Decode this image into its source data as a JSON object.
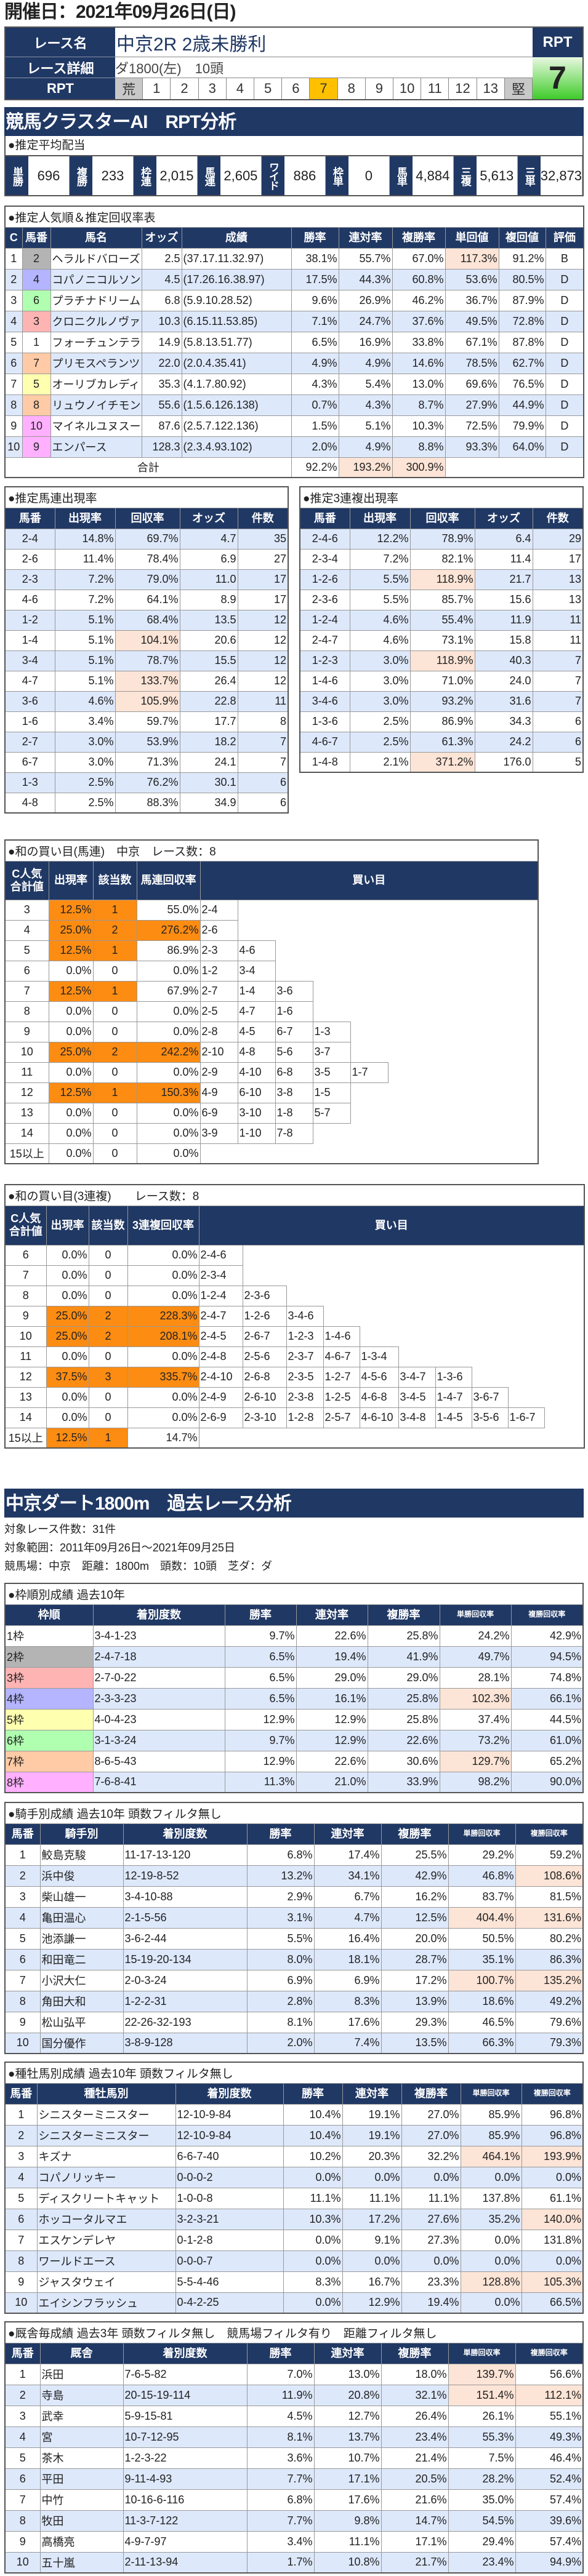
{
  "header": {
    "date": "開催日：2021年09月26日(日)",
    "race_name_label": "レース名",
    "race_name": "中京2R 2歳未勝利",
    "detail_label": "レース詳細",
    "detail": "ダ1800(左)　10頭",
    "rpt_label": "RPT",
    "rpt_scale": [
      "荒",
      "1",
      "2",
      "3",
      "4",
      "5",
      "6",
      "7",
      "8",
      "9",
      "10",
      "11",
      "12",
      "13",
      "堅"
    ],
    "rpt_selected": "7",
    "rpt_box_label": "RPT",
    "rpt_value": "7",
    "rpt_color": "#ffc000"
  },
  "colors": {
    "navy": "#203864",
    "stripe": "#dde8fb",
    "highlight": "#fce4d6",
    "orange": "#fd8c13",
    "frames": {
      "1": "#ffffff",
      "2": "#b4b4b4",
      "3": "#ffb4b4",
      "4": "#b4b4ff",
      "5": "#ffffb0",
      "6": "#b0ffb0",
      "7": "#ffcaa6",
      "8": "#ffb0ff"
    }
  },
  "ai": {
    "title": "競馬クラスターAI　RPT分析",
    "payout_title": "●推定平均配当",
    "payouts": [
      {
        "label": "単勝",
        "value": "696"
      },
      {
        "label": "複勝",
        "value": "233"
      },
      {
        "label": "枠連",
        "value": "2,015"
      },
      {
        "label": "馬連",
        "value": "2,605"
      },
      {
        "label": "ワイド",
        "value": "886"
      },
      {
        "label": "枠単",
        "value": "0"
      },
      {
        "label": "馬単",
        "value": "4,884"
      },
      {
        "label": "三複",
        "value": "5,613"
      },
      {
        "label": "三単",
        "value": "32,873"
      }
    ]
  },
  "popularity": {
    "title": "●推定人気順＆推定回収率表",
    "headers": [
      "C",
      "馬番",
      "馬名",
      "オッズ",
      "成績",
      "勝率",
      "連対率",
      "複勝率",
      "単回値",
      "複回値",
      "評価"
    ],
    "rows": [
      [
        "1",
        "2",
        "ヘラルドバローズ",
        "2.5",
        "(37.17.11.32.97)",
        "38.1%",
        "55.7%",
        "67.0%",
        "117.3%",
        "91.2%",
        "B"
      ],
      [
        "2",
        "4",
        "コパノニコルソン",
        "4.5",
        "(17.26.16.38.97)",
        "17.5%",
        "44.3%",
        "60.8%",
        "53.6%",
        "80.5%",
        "D"
      ],
      [
        "3",
        "6",
        "プラチナドリーム",
        "6.8",
        "(5.9.10.28.52)",
        "9.6%",
        "26.9%",
        "46.2%",
        "36.7%",
        "87.9%",
        "D"
      ],
      [
        "4",
        "3",
        "クロニクルノヴァ",
        "10.3",
        "(6.15.11.53.85)",
        "7.1%",
        "24.7%",
        "37.6%",
        "49.5%",
        "72.8%",
        "D"
      ],
      [
        "5",
        "1",
        "フォーチュンテラー",
        "14.9",
        "(5.8.13.51.77)",
        "6.5%",
        "16.9%",
        "33.8%",
        "67.1%",
        "87.8%",
        "D"
      ],
      [
        "6",
        "7",
        "プリモスペランツァ",
        "22.0",
        "(2.0.4.35.41)",
        "4.9%",
        "4.9%",
        "14.6%",
        "78.5%",
        "62.7%",
        "D"
      ],
      [
        "7",
        "5",
        "オーリブカレディ",
        "35.3",
        "(4.1.7.80.92)",
        "4.3%",
        "5.4%",
        "13.0%",
        "69.6%",
        "76.5%",
        "D"
      ],
      [
        "8",
        "8",
        "リュウノイチモンジ",
        "55.6",
        "(1.5.6.126.138)",
        "0.7%",
        "4.3%",
        "8.7%",
        "27.9%",
        "44.9%",
        "D"
      ],
      [
        "9",
        "10",
        "マイネルユヌスール",
        "87.6",
        "(2.5.7.122.136)",
        "1.5%",
        "5.1%",
        "10.3%",
        "72.5%",
        "79.9%",
        "D"
      ],
      [
        "10",
        "9",
        "エンパース",
        "128.3",
        "(2.3.4.93.102)",
        "2.0%",
        "4.9%",
        "8.8%",
        "93.3%",
        "64.0%",
        "D"
      ]
    ],
    "frames": [
      "2",
      "4",
      "6",
      "3",
      "1",
      "7",
      "5",
      "7",
      "8",
      "8"
    ],
    "highlights": [
      [
        0,
        8
      ]
    ],
    "total": {
      "label": "合計",
      "win": "92.2%",
      "ren": "193.2%",
      "fuku": "300.9%"
    }
  },
  "umaren": {
    "title": "●推定馬連出現率",
    "headers": [
      "馬番",
      "出現率",
      "回収率",
      "オッズ",
      "件数"
    ],
    "rows": [
      [
        "2-4",
        "14.8%",
        "69.7%",
        "4.7",
        "35"
      ],
      [
        "2-6",
        "11.4%",
        "78.4%",
        "6.9",
        "27"
      ],
      [
        "2-3",
        "7.2%",
        "79.0%",
        "11.0",
        "17"
      ],
      [
        "4-6",
        "7.2%",
        "64.1%",
        "8.9",
        "17"
      ],
      [
        "1-2",
        "5.1%",
        "68.4%",
        "13.5",
        "12"
      ],
      [
        "1-4",
        "5.1%",
        "104.1%",
        "20.6",
        "12"
      ],
      [
        "3-4",
        "5.1%",
        "78.7%",
        "15.5",
        "12"
      ],
      [
        "4-7",
        "5.1%",
        "133.7%",
        "26.4",
        "12"
      ],
      [
        "3-6",
        "4.6%",
        "105.9%",
        "22.8",
        "11"
      ],
      [
        "1-6",
        "3.4%",
        "59.7%",
        "17.7",
        "8"
      ],
      [
        "2-7",
        "3.0%",
        "53.9%",
        "18.2",
        "7"
      ],
      [
        "6-7",
        "3.0%",
        "71.3%",
        "24.1",
        "7"
      ],
      [
        "1-3",
        "2.5%",
        "76.2%",
        "30.1",
        "6"
      ],
      [
        "4-8",
        "2.5%",
        "88.3%",
        "34.9",
        "6"
      ]
    ],
    "highlights": [
      [
        5,
        2
      ],
      [
        7,
        2
      ],
      [
        8,
        2
      ]
    ]
  },
  "sanrenpuku": {
    "title": "●推定3連複出現率",
    "headers": [
      "馬番",
      "出現率",
      "回収率",
      "オッズ",
      "件数"
    ],
    "rows": [
      [
        "2-4-6",
        "12.2%",
        "78.9%",
        "6.4",
        "29"
      ],
      [
        "2-3-4",
        "7.2%",
        "82.1%",
        "11.4",
        "17"
      ],
      [
        "1-2-6",
        "5.5%",
        "118.9%",
        "21.7",
        "13"
      ],
      [
        "2-3-6",
        "5.5%",
        "85.7%",
        "15.6",
        "13"
      ],
      [
        "1-2-4",
        "4.6%",
        "55.4%",
        "11.9",
        "11"
      ],
      [
        "2-4-7",
        "4.6%",
        "73.1%",
        "15.8",
        "11"
      ],
      [
        "1-2-3",
        "3.0%",
        "118.9%",
        "40.3",
        "7"
      ],
      [
        "1-4-6",
        "3.0%",
        "71.0%",
        "24.0",
        "7"
      ],
      [
        "3-4-6",
        "3.0%",
        "93.2%",
        "31.6",
        "7"
      ],
      [
        "1-3-6",
        "2.5%",
        "86.9%",
        "34.3",
        "6"
      ],
      [
        "4-6-7",
        "2.5%",
        "61.3%",
        "24.2",
        "6"
      ],
      [
        "1-4-8",
        "2.1%",
        "371.2%",
        "176.0",
        "5"
      ]
    ],
    "highlights": [
      [
        2,
        2
      ],
      [
        6,
        2
      ],
      [
        11,
        2
      ]
    ]
  },
  "buy_umaren": {
    "title": "●和の買い目(馬連)　中京　レース数：8",
    "headers": [
      "C人気\n合計値",
      "出現率",
      "該当数",
      "馬連回収率",
      "買い目"
    ],
    "rows": [
      [
        "3",
        "12.5%",
        "1",
        "55.0%",
        [
          "2-4"
        ]
      ],
      [
        "4",
        "25.0%",
        "2",
        "276.2%",
        [
          "2-6"
        ]
      ],
      [
        "5",
        "12.5%",
        "1",
        "86.9%",
        [
          "2-3",
          "4-6"
        ]
      ],
      [
        "6",
        "0.0%",
        "0",
        "0.0%",
        [
          "1-2",
          "3-4"
        ]
      ],
      [
        "7",
        "12.5%",
        "1",
        "67.9%",
        [
          "2-7",
          "1-4",
          "3-6"
        ]
      ],
      [
        "8",
        "0.0%",
        "0",
        "0.0%",
        [
          "2-5",
          "4-7",
          "1-6"
        ]
      ],
      [
        "9",
        "0.0%",
        "0",
        "0.0%",
        [
          "2-8",
          "4-5",
          "6-7",
          "1-3"
        ]
      ],
      [
        "10",
        "25.0%",
        "2",
        "242.2%",
        [
          "2-10",
          "4-8",
          "5-6",
          "3-7"
        ]
      ],
      [
        "11",
        "0.0%",
        "0",
        "0.0%",
        [
          "2-9",
          "4-10",
          "6-8",
          "3-5",
          "1-7"
        ]
      ],
      [
        "12",
        "12.5%",
        "1",
        "150.3%",
        [
          "4-9",
          "6-10",
          "3-8",
          "1-5"
        ]
      ],
      [
        "13",
        "0.0%",
        "0",
        "0.0%",
        [
          "6-9",
          "3-10",
          "1-8",
          "5-7"
        ]
      ],
      [
        "14",
        "0.0%",
        "0",
        "0.0%",
        [
          "3-9",
          "1-10",
          "7-8"
        ]
      ],
      [
        "15以上",
        "0.0%",
        "0",
        "0.0%",
        []
      ]
    ],
    "orange": [
      [
        0,
        1
      ],
      [
        0,
        2
      ],
      [
        1,
        1
      ],
      [
        1,
        2
      ],
      [
        1,
        3
      ],
      [
        2,
        1
      ],
      [
        2,
        2
      ],
      [
        4,
        1
      ],
      [
        4,
        2
      ],
      [
        7,
        1
      ],
      [
        7,
        2
      ],
      [
        7,
        3
      ],
      [
        9,
        1
      ],
      [
        9,
        2
      ],
      [
        9,
        3
      ]
    ]
  },
  "buy_sanrenpuku": {
    "title": "●和の買い目(3連複)　　レース数：8",
    "headers": [
      "C人気\n合計値",
      "出現率",
      "該当数",
      "3連複回収率",
      "買い目"
    ],
    "rows": [
      [
        "6",
        "0.0%",
        "0",
        "0.0%",
        [
          "2-4-6"
        ]
      ],
      [
        "7",
        "0.0%",
        "0",
        "0.0%",
        [
          "2-3-4"
        ]
      ],
      [
        "8",
        "0.0%",
        "0",
        "0.0%",
        [
          "1-2-4",
          "2-3-6"
        ]
      ],
      [
        "9",
        "25.0%",
        "2",
        "228.3%",
        [
          "2-4-7",
          "1-2-6",
          "3-4-6"
        ]
      ],
      [
        "10",
        "25.0%",
        "2",
        "208.1%",
        [
          "2-4-5",
          "2-6-7",
          "1-2-3",
          "1-4-6"
        ]
      ],
      [
        "11",
        "0.0%",
        "0",
        "0.0%",
        [
          "2-4-8",
          "2-5-6",
          "2-3-7",
          "4-6-7",
          "1-3-4"
        ]
      ],
      [
        "12",
        "37.5%",
        "3",
        "335.7%",
        [
          "2-4-10",
          "2-6-8",
          "2-3-5",
          "1-2-7",
          "4-5-6",
          "3-4-7",
          "1-3-6"
        ]
      ],
      [
        "13",
        "0.0%",
        "0",
        "0.0%",
        [
          "2-4-9",
          "2-6-10",
          "2-3-8",
          "1-2-5",
          "4-6-8",
          "3-4-5",
          "1-4-7",
          "3-6-7"
        ]
      ],
      [
        "14",
        "0.0%",
        "0",
        "0.0%",
        [
          "2-6-9",
          "2-3-10",
          "1-2-8",
          "2-5-7",
          "4-6-10",
          "3-4-8",
          "1-4-5",
          "3-5-6",
          "1-6-7"
        ]
      ],
      [
        "15以上",
        "12.5%",
        "1",
        "14.7%",
        []
      ]
    ],
    "orange": [
      [
        3,
        1
      ],
      [
        3,
        2
      ],
      [
        3,
        3
      ],
      [
        4,
        1
      ],
      [
        4,
        2
      ],
      [
        4,
        3
      ],
      [
        6,
        1
      ],
      [
        6,
        2
      ],
      [
        6,
        3
      ],
      [
        9,
        1
      ],
      [
        9,
        2
      ]
    ]
  },
  "past": {
    "title": "中京ダート1800m　過去レース分析",
    "count": "対象レース件数：31件",
    "range": "対象範囲：2011年09月26日～2021年09月25日",
    "conditions": "競馬場：中京　距離：1800m　頭数：10頭　芝ダ：ダ"
  },
  "waku": {
    "title": "●枠順別成績 過去10年",
    "headers": [
      "枠順",
      "着別度数",
      "勝率",
      "連対率",
      "複勝率",
      "単勝回収率",
      "複勝回収率"
    ],
    "rows": [
      [
        "1枠",
        "3-4-1-23",
        "9.7%",
        "22.6%",
        "25.8%",
        "24.2%",
        "42.9%"
      ],
      [
        "2枠",
        "2-4-7-18",
        "6.5%",
        "19.4%",
        "41.9%",
        "49.7%",
        "94.5%"
      ],
      [
        "3枠",
        "2-7-0-22",
        "6.5%",
        "29.0%",
        "29.0%",
        "28.1%",
        "74.8%"
      ],
      [
        "4枠",
        "2-3-3-23",
        "6.5%",
        "16.1%",
        "25.8%",
        "102.3%",
        "66.1%"
      ],
      [
        "5枠",
        "4-0-4-23",
        "12.9%",
        "12.9%",
        "25.8%",
        "37.4%",
        "44.5%"
      ],
      [
        "6枠",
        "3-1-3-24",
        "9.7%",
        "12.9%",
        "22.6%",
        "73.2%",
        "61.0%"
      ],
      [
        "7枠",
        "8-6-5-43",
        "12.9%",
        "22.6%",
        "30.6%",
        "129.7%",
        "65.2%"
      ],
      [
        "8枠",
        "7-6-8-41",
        "11.3%",
        "21.0%",
        "33.9%",
        "98.2%",
        "90.0%"
      ]
    ],
    "frames": [
      "1",
      "2",
      "3",
      "4",
      "5",
      "6",
      "7",
      "8"
    ],
    "highlights": [
      [
        3,
        5
      ],
      [
        6,
        5
      ]
    ]
  },
  "jockey": {
    "title": "●騎手別成績 過去10年 頭数フィルタ無し",
    "headers": [
      "馬番",
      "騎手別",
      "着別度数",
      "勝率",
      "連対率",
      "複勝率",
      "単勝回収率",
      "複勝回収率"
    ],
    "rows": [
      [
        "1",
        "鮫島克駿",
        "11-17-13-120",
        "6.8%",
        "17.4%",
        "25.5%",
        "29.2%",
        "59.2%"
      ],
      [
        "2",
        "浜中俊",
        "12-19-8-52",
        "13.2%",
        "34.1%",
        "42.9%",
        "46.8%",
        "108.6%"
      ],
      [
        "3",
        "柴山雄一",
        "3-4-10-88",
        "2.9%",
        "6.7%",
        "16.2%",
        "83.7%",
        "81.5%"
      ],
      [
        "4",
        "亀田温心",
        "2-1-5-56",
        "3.1%",
        "4.7%",
        "12.5%",
        "404.4%",
        "131.6%"
      ],
      [
        "5",
        "池添謙一",
        "3-6-2-44",
        "5.5%",
        "16.4%",
        "20.0%",
        "50.5%",
        "80.2%"
      ],
      [
        "6",
        "和田竜二",
        "15-19-20-134",
        "8.0%",
        "18.1%",
        "28.7%",
        "35.1%",
        "86.3%"
      ],
      [
        "7",
        "小沢大仁",
        "2-0-3-24",
        "6.9%",
        "6.9%",
        "17.2%",
        "100.7%",
        "135.2%"
      ],
      [
        "8",
        "角田大和",
        "1-2-2-31",
        "2.8%",
        "8.3%",
        "13.9%",
        "18.6%",
        "49.2%"
      ],
      [
        "9",
        "松山弘平",
        "22-26-32-193",
        "8.1%",
        "17.6%",
        "29.3%",
        "46.5%",
        "79.6%"
      ],
      [
        "10",
        "国分優作",
        "3-8-9-128",
        "2.0%",
        "7.4%",
        "13.5%",
        "66.3%",
        "79.3%"
      ]
    ],
    "highlights": [
      [
        1,
        7
      ],
      [
        3,
        6
      ],
      [
        3,
        7
      ],
      [
        6,
        6
      ],
      [
        6,
        7
      ]
    ]
  },
  "sire": {
    "title": "●種牡馬別成績 過去10年 頭数フィルタ無し",
    "headers": [
      "馬番",
      "種牡馬別",
      "着別度数",
      "勝率",
      "連対率",
      "複勝率",
      "単勝回収率",
      "複勝回収率"
    ],
    "rows": [
      [
        "1",
        "シニスターミニスター",
        "12-10-9-84",
        "10.4%",
        "19.1%",
        "27.0%",
        "85.9%",
        "96.8%"
      ],
      [
        "2",
        "シニスターミニスター",
        "12-10-9-84",
        "10.4%",
        "19.1%",
        "27.0%",
        "85.9%",
        "96.8%"
      ],
      [
        "3",
        "キズナ",
        "6-6-7-40",
        "10.2%",
        "20.3%",
        "32.2%",
        "464.1%",
        "193.9%"
      ],
      [
        "4",
        "コパノリッキー",
        "0-0-0-2",
        "0.0%",
        "0.0%",
        "0.0%",
        "0.0%",
        "0.0%"
      ],
      [
        "5",
        "ディスクリートキャット",
        "1-0-0-8",
        "11.1%",
        "11.1%",
        "11.1%",
        "137.8%",
        "61.1%"
      ],
      [
        "6",
        "ホッコータルマエ",
        "3-2-3-21",
        "10.3%",
        "17.2%",
        "27.6%",
        "35.2%",
        "140.0%"
      ],
      [
        "7",
        "エスケンデレヤ",
        "0-1-2-8",
        "0.0%",
        "9.1%",
        "27.3%",
        "0.0%",
        "131.8%"
      ],
      [
        "8",
        "ワールドエース",
        "0-0-0-7",
        "0.0%",
        "0.0%",
        "0.0%",
        "0.0%",
        "0.0%"
      ],
      [
        "9",
        "ジャスタウェイ",
        "5-5-4-46",
        "8.3%",
        "16.7%",
        "23.3%",
        "128.8%",
        "105.3%"
      ],
      [
        "10",
        "エイシンフラッシュ",
        "0-4-2-25",
        "0.0%",
        "12.9%",
        "19.4%",
        "0.0%",
        "66.5%"
      ]
    ],
    "highlights": [
      [
        2,
        6
      ],
      [
        2,
        7
      ],
      [
        5,
        7
      ],
      [
        8,
        6
      ],
      [
        8,
        7
      ]
    ]
  },
  "stable": {
    "title": "●厩舎毎成績 過去3年 頭数フィルタ無し　競馬場フィルタ有り　距離フィルタ無し",
    "headers": [
      "馬番",
      "厩舎",
      "着別度数",
      "勝率",
      "連対率",
      "複勝率",
      "単勝回収率",
      "複勝回収率"
    ],
    "rows": [
      [
        "1",
        "浜田",
        "7-6-5-82",
        "7.0%",
        "13.0%",
        "18.0%",
        "139.7%",
        "56.6%"
      ],
      [
        "2",
        "寺島",
        "20-15-19-114",
        "11.9%",
        "20.8%",
        "32.1%",
        "151.4%",
        "112.1%"
      ],
      [
        "3",
        "武幸",
        "5-9-15-81",
        "4.5%",
        "12.7%",
        "26.4%",
        "26.1%",
        "55.1%"
      ],
      [
        "4",
        "宮",
        "10-7-12-95",
        "8.1%",
        "13.7%",
        "23.4%",
        "55.3%",
        "49.3%"
      ],
      [
        "5",
        "茶木",
        "1-2-3-22",
        "3.6%",
        "10.7%",
        "21.4%",
        "7.5%",
        "46.4%"
      ],
      [
        "6",
        "平田",
        "9-11-4-93",
        "7.7%",
        "17.1%",
        "20.5%",
        "28.2%",
        "52.4%"
      ],
      [
        "7",
        "中竹",
        "10-16-6-116",
        "6.8%",
        "17.6%",
        "21.6%",
        "35.0%",
        "57.4%"
      ],
      [
        "8",
        "牧田",
        "11-3-7-122",
        "7.7%",
        "9.8%",
        "14.7%",
        "54.5%",
        "39.6%"
      ],
      [
        "9",
        "高橋亮",
        "4-9-7-97",
        "3.4%",
        "11.1%",
        "17.1%",
        "29.4%",
        "57.4%"
      ],
      [
        "10",
        "五十嵐",
        "2-11-13-94",
        "1.7%",
        "10.8%",
        "21.7%",
        "23.4%",
        "94.9%"
      ]
    ],
    "highlights": [
      [
        0,
        6
      ],
      [
        1,
        6
      ],
      [
        1,
        7
      ]
    ]
  }
}
